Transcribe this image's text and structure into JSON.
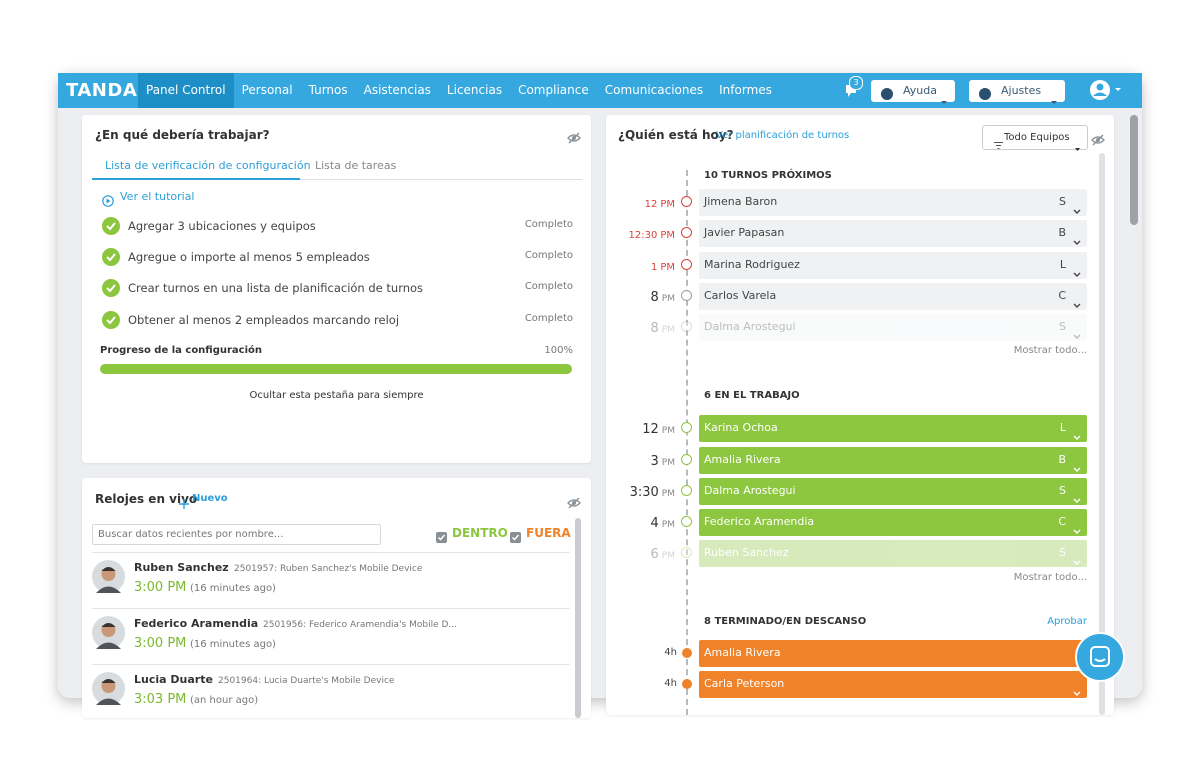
{
  "nav": {
    "brand": "TANDA",
    "items": [
      "Panel Control",
      "Personal",
      "Turnos",
      "Asistencias",
      "Licencias",
      "Compliance",
      "Comunicaciones",
      "Informes"
    ],
    "badge": "3",
    "help": "Ayuda",
    "settings": "Ajustes"
  },
  "setup": {
    "title": "¿En qué debería trabajar?",
    "tabs": [
      "Lista de verificación de configuración",
      "Lista de tareas"
    ],
    "tutorial": "Ver el tutorial",
    "tasks": [
      {
        "label": "Agregar 3 ubicaciones y equipos",
        "status": "Completo"
      },
      {
        "label": "Agregue o importe al menos 5 empleados",
        "status": "Completo"
      },
      {
        "label": "Crear turnos en una lista de planificación de turnos",
        "status": "Completo"
      },
      {
        "label": "Obtener al menos 2 empleados marcando reloj",
        "status": "Completo"
      }
    ],
    "progress_label": "Progreso de la configuración",
    "progress_value": "100%",
    "hide": "Ocultar esta pestaña para siempre"
  },
  "clocks": {
    "title": "Relojes en vivo",
    "new": "Nuevo",
    "search": "Buscar datos recientes por nombre...",
    "filters": [
      "DENTRO",
      "FUERA"
    ],
    "entries": [
      {
        "name": "Ruben Sanchez",
        "device": "2501957: Ruben Sanchez's Mobile Device",
        "time": "3:00 PM",
        "ago": "(16 minutes ago)"
      },
      {
        "name": "Federico Aramendia",
        "device": "2501956: Federico Aramendia's Mobile D...",
        "time": "3:00 PM",
        "ago": "(16 minutes ago)"
      },
      {
        "name": "Lucia Duarte",
        "device": "2501964: Lucia Duarte's Mobile Device",
        "time": "3:03 PM",
        "ago": "(an hour ago)"
      }
    ]
  },
  "today": {
    "title": "¿Quién está hoy?",
    "link": "Ver planificación de turnos",
    "filter": "Todo Equipos",
    "sections": [
      {
        "heading": "10 TURNOS PRÓXIMOS",
        "style": "upcoming",
        "more": "Mostrar todo...",
        "rows": [
          {
            "hour": "12",
            "meridiem": "PM",
            "late": true,
            "name": "Jimena Baron",
            "role": "S"
          },
          {
            "hour": "12:30",
            "meridiem": "PM",
            "late": true,
            "name": "Javier Papasan",
            "role": "B"
          },
          {
            "hour": "1",
            "meridiem": "PM",
            "late": true,
            "name": "Marina Rodriguez",
            "role": "L"
          },
          {
            "hour": "8",
            "meridiem": "PM",
            "late": false,
            "name": "Carlos Varela",
            "role": "C"
          },
          {
            "hour": "8",
            "meridiem": "PM",
            "late": false,
            "name": "Dalma Arostegui",
            "role": "S"
          }
        ]
      },
      {
        "heading": "6 EN EL TRABAJO",
        "style": "working",
        "more": "Mostrar todo...",
        "rows": [
          {
            "hour": "12",
            "meridiem": "PM",
            "late": false,
            "name": "Karina Ochoa",
            "role": "L"
          },
          {
            "hour": "3",
            "meridiem": "PM",
            "late": false,
            "name": "Amalia Rivera",
            "role": "B"
          },
          {
            "hour": "3:30",
            "meridiem": "PM",
            "late": false,
            "name": "Dalma Arostegui",
            "role": "S"
          },
          {
            "hour": "4",
            "meridiem": "PM",
            "late": false,
            "name": "Federico Aramendia",
            "role": "C"
          },
          {
            "hour": "6",
            "meridiem": "PM",
            "late": false,
            "name": "Ruben Sanchez",
            "role": "S"
          }
        ]
      },
      {
        "heading": "8 TERMINADO/EN DESCANSO",
        "style": "finished",
        "action": "Aprobar",
        "rows": [
          {
            "duration": "4h",
            "name": "Amalia Rivera"
          },
          {
            "duration": "4h",
            "name": "Carla Peterson"
          }
        ]
      }
    ]
  }
}
